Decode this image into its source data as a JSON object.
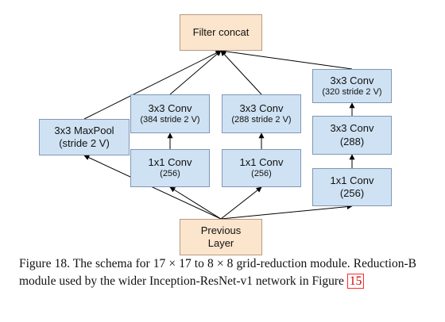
{
  "nodes": {
    "filter_concat": {
      "line1": "Filter concat"
    },
    "maxpool": {
      "line1": "3x3 MaxPool",
      "line2": "(stride 2 V)"
    },
    "b1_conv3": {
      "line1": "3x3 Conv",
      "line2": "(384 stride 2 V)"
    },
    "b1_conv1": {
      "line1": "1x1 Conv",
      "line2": "(256)"
    },
    "b2_conv3": {
      "line1": "3x3 Conv",
      "line2": "(288 stride 2 V)"
    },
    "b2_conv1": {
      "line1": "1x1 Conv",
      "line2": "(256)"
    },
    "b3_conv3_top": {
      "line1": "3x3 Conv",
      "line2": "(320 stride 2 V)"
    },
    "b3_conv3_mid": {
      "line1": "3x3 Conv",
      "line2": "(288)"
    },
    "b3_conv1": {
      "line1": "1x1 Conv",
      "line2": "(256)"
    },
    "previous": {
      "line1": "Previous",
      "line2": "Layer"
    }
  },
  "caption": {
    "text": "Figure 18. The schema for 17 × 17 to 8 × 8 grid-reduction module. Reduction-B module used by the wider Inception-ResNet-v1 network in Figure ",
    "ref": "15"
  }
}
